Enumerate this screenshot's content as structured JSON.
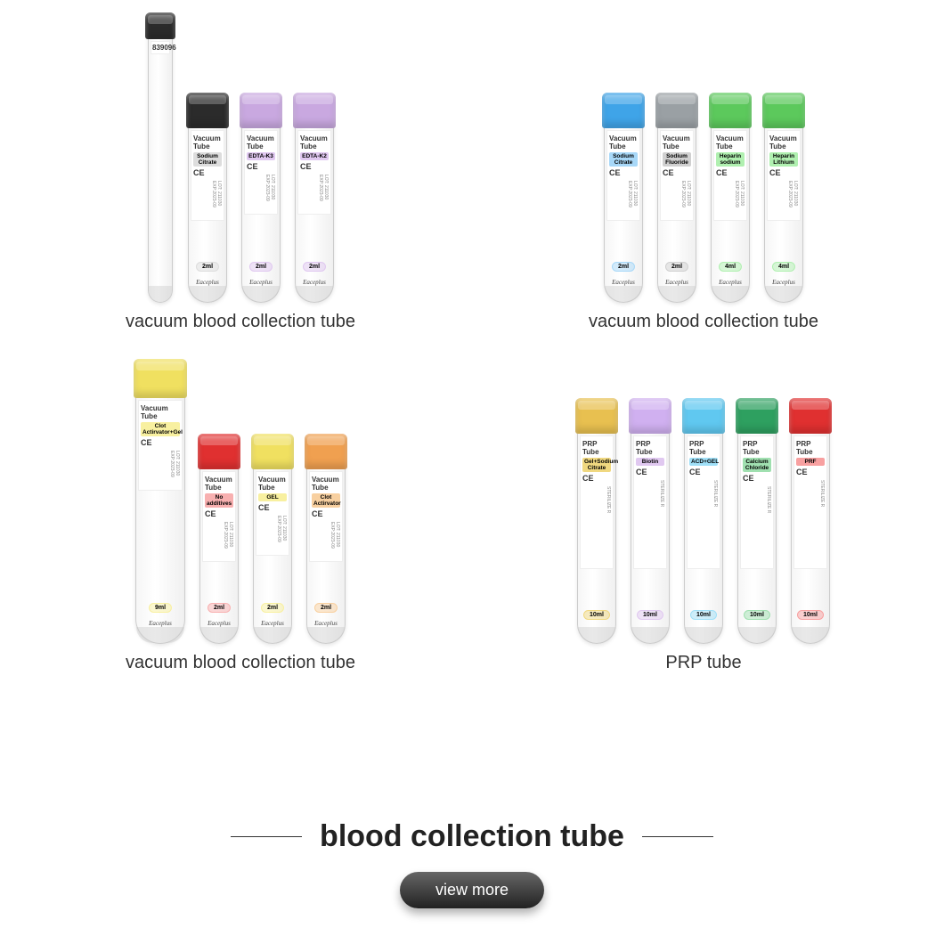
{
  "colors": {
    "black": "#2b2b2b",
    "purple": "#c9a8e0",
    "blue": "#3fa4e8",
    "gray": "#9aa0a4",
    "green": "#5cc95c",
    "yellow": "#f0e060",
    "red": "#e03030",
    "orange": "#f0a050",
    "lightpurple": "#d0b0f0",
    "cyan": "#60c8f0",
    "darkgreen": "#2ea060",
    "gold": "#e8c050"
  },
  "groups": [
    {
      "caption": "vacuum blood collection tube",
      "tubes": [
        {
          "variant": "esr",
          "cap_color": "black",
          "title": "839096",
          "sub": "",
          "band_color": "#ffffff",
          "vol": "",
          "brand": ""
        },
        {
          "variant": "short",
          "cap_color": "black",
          "title": "Vacuum Tube",
          "sub": "Sodium Citrate",
          "band_color": "#dddddd",
          "vol": "2ml",
          "brand": "Eaceplus"
        },
        {
          "variant": "short",
          "cap_color": "purple",
          "title": "Vacuum Tube",
          "sub": "EDTA-K3",
          "band_color": "#e0c8f0",
          "vol": "2ml",
          "brand": "Eaceplus"
        },
        {
          "variant": "short",
          "cap_color": "purple",
          "title": "Vacuum Tube",
          "sub": "EDTA-K2",
          "band_color": "#e0c8f0",
          "vol": "2ml",
          "brand": "Eaceplus"
        }
      ]
    },
    {
      "caption": "vacuum blood collection tube",
      "tubes": [
        {
          "variant": "short",
          "cap_color": "blue",
          "title": "Vacuum Tube",
          "sub": "Sodium Citrate",
          "band_color": "#a8d8f8",
          "vol": "2ml",
          "brand": "Eaceplus"
        },
        {
          "variant": "short",
          "cap_color": "gray",
          "title": "Vacuum Tube",
          "sub": "Sodium Fluoride",
          "band_color": "#d0d0d0",
          "vol": "2ml",
          "brand": "Eaceplus"
        },
        {
          "variant": "short",
          "cap_color": "green",
          "title": "Vacuum Tube",
          "sub": "Heparin sodium",
          "band_color": "#b0f0b0",
          "vol": "4ml",
          "brand": "Eaceplus"
        },
        {
          "variant": "short",
          "cap_color": "green",
          "title": "Vacuum Tube",
          "sub": "Heparin Lithium",
          "band_color": "#b0f0b0",
          "vol": "4ml",
          "brand": "Eaceplus"
        }
      ]
    },
    {
      "caption": "vacuum blood collection tube",
      "tubes": [
        {
          "variant": "wide",
          "cap_color": "yellow",
          "title": "Vacuum Tube",
          "sub": "Clot Actirvator+Gel",
          "band_color": "#f8f0a0",
          "vol": "9ml",
          "brand": "Eaceplus"
        },
        {
          "variant": "short",
          "cap_color": "red",
          "title": "Vacuum Tube",
          "sub": "No additives",
          "band_color": "#f8b0b0",
          "vol": "2ml",
          "brand": "Eaceplus"
        },
        {
          "variant": "short",
          "cap_color": "yellow",
          "title": "Vacuum Tube",
          "sub": "GEL",
          "band_color": "#f8f0a0",
          "vol": "2ml",
          "brand": "Eaceplus"
        },
        {
          "variant": "short",
          "cap_color": "orange",
          "title": "Vacuum Tube",
          "sub": "Clot Actirvator",
          "band_color": "#f8d0a0",
          "vol": "2ml",
          "brand": "Eaceplus"
        }
      ]
    },
    {
      "caption": "PRP tube",
      "tubes": [
        {
          "variant": "prp",
          "cap_color": "gold",
          "title": "PRP Tube",
          "sub": "Gel+Sodium Citrate",
          "band_color": "#f0d880",
          "vol": "10ml",
          "brand": ""
        },
        {
          "variant": "prp",
          "cap_color": "lightpurple",
          "title": "PRP Tube",
          "sub": "Biotin",
          "band_color": "#e0c8f0",
          "vol": "10ml",
          "brand": ""
        },
        {
          "variant": "prp",
          "cap_color": "cyan",
          "title": "PRP Tube",
          "sub": "ACD+GEL",
          "band_color": "#a0e0f8",
          "vol": "10ml",
          "brand": ""
        },
        {
          "variant": "prp",
          "cap_color": "darkgreen",
          "title": "PRP Tube",
          "sub": "Calcium Chloride",
          "band_color": "#a0e0b0",
          "vol": "10ml",
          "brand": ""
        },
        {
          "variant": "prp",
          "cap_color": "red",
          "title": "PRP Tube",
          "sub": "PRF",
          "band_color": "#f8a0a0",
          "vol": "10ml",
          "brand": ""
        }
      ]
    }
  ],
  "footer": {
    "title": "blood collection tube",
    "button": "view more"
  },
  "label_fixed": {
    "ce": "CE",
    "side": "LOT: 211030  EXP:2023-09",
    "sterilize": "STERILIZE R"
  }
}
